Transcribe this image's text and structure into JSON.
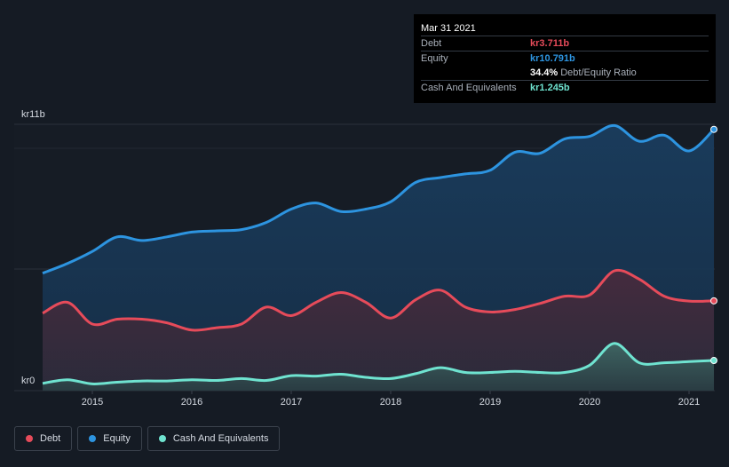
{
  "tooltip": {
    "date": "Mar 31 2021",
    "debt_label": "Debt",
    "debt_value": "kr3.711b",
    "equity_label": "Equity",
    "equity_value": "kr10.791b",
    "ratio_value": "34.4%",
    "ratio_label": "Debt/Equity Ratio",
    "cash_label": "Cash And Equivalents",
    "cash_value": "kr1.245b"
  },
  "legend": {
    "debt": "Debt",
    "equity": "Equity",
    "cash": "Cash And Equivalents"
  },
  "colors": {
    "debt": "#e64b5a",
    "equity": "#2d94e0",
    "cash": "#6fe3d0",
    "background": "#151b24"
  },
  "chart_data": {
    "type": "area",
    "y_top_label": "kr11b",
    "y_bottom_label": "kr0",
    "ylim": [
      0,
      11
    ],
    "xlim": [
      2014.5,
      2021.25
    ],
    "xticks": [
      {
        "value": 2015,
        "label": "2015"
      },
      {
        "value": 2016,
        "label": "2016"
      },
      {
        "value": 2017,
        "label": "2017"
      },
      {
        "value": 2018,
        "label": "2018"
      },
      {
        "value": 2019,
        "label": "2019"
      },
      {
        "value": 2020,
        "label": "2020"
      },
      {
        "value": 2021,
        "label": "2021"
      }
    ],
    "grid": true,
    "legend": "bottom-left",
    "series": [
      {
        "name": "Equity",
        "key": "equity",
        "x": [
          2014.5,
          2014.75,
          2015.0,
          2015.25,
          2015.5,
          2015.75,
          2016.0,
          2016.25,
          2016.5,
          2016.75,
          2017.0,
          2017.25,
          2017.5,
          2017.75,
          2018.0,
          2018.25,
          2018.5,
          2018.75,
          2019.0,
          2019.25,
          2019.5,
          2019.75,
          2020.0,
          2020.25,
          2020.5,
          2020.75,
          2021.0,
          2021.25
        ],
        "y": [
          4.85,
          5.25,
          5.75,
          6.35,
          6.2,
          6.35,
          6.55,
          6.6,
          6.65,
          6.95,
          7.5,
          7.75,
          7.4,
          7.5,
          7.8,
          8.6,
          8.8,
          8.95,
          9.1,
          9.85,
          9.8,
          10.4,
          10.5,
          10.95,
          10.3,
          10.55,
          9.9,
          10.79
        ]
      },
      {
        "name": "Debt",
        "key": "debt",
        "x": [
          2014.5,
          2014.75,
          2015.0,
          2015.25,
          2015.5,
          2015.75,
          2016.0,
          2016.25,
          2016.5,
          2016.75,
          2017.0,
          2017.25,
          2017.5,
          2017.75,
          2018.0,
          2018.25,
          2018.5,
          2018.75,
          2019.0,
          2019.25,
          2019.5,
          2019.75,
          2020.0,
          2020.25,
          2020.5,
          2020.75,
          2021.0,
          2021.25
        ],
        "y": [
          3.2,
          3.65,
          2.75,
          2.95,
          2.95,
          2.8,
          2.5,
          2.6,
          2.75,
          3.45,
          3.1,
          3.65,
          4.05,
          3.65,
          3.0,
          3.75,
          4.15,
          3.45,
          3.25,
          3.35,
          3.6,
          3.9,
          3.95,
          4.95,
          4.6,
          3.9,
          3.7,
          3.71
        ]
      },
      {
        "name": "Cash And Equivalents",
        "key": "cash",
        "x": [
          2014.5,
          2014.75,
          2015.0,
          2015.25,
          2015.5,
          2015.75,
          2016.0,
          2016.25,
          2016.5,
          2016.75,
          2017.0,
          2017.25,
          2017.5,
          2017.75,
          2018.0,
          2018.25,
          2018.5,
          2018.75,
          2019.0,
          2019.25,
          2019.5,
          2019.75,
          2020.0,
          2020.25,
          2020.5,
          2020.75,
          2021.0,
          2021.25
        ],
        "y": [
          0.3,
          0.45,
          0.28,
          0.35,
          0.4,
          0.4,
          0.45,
          0.42,
          0.5,
          0.42,
          0.62,
          0.6,
          0.68,
          0.55,
          0.5,
          0.7,
          0.95,
          0.75,
          0.75,
          0.8,
          0.75,
          0.75,
          1.05,
          1.95,
          1.15,
          1.15,
          1.2,
          1.245
        ]
      }
    ]
  }
}
